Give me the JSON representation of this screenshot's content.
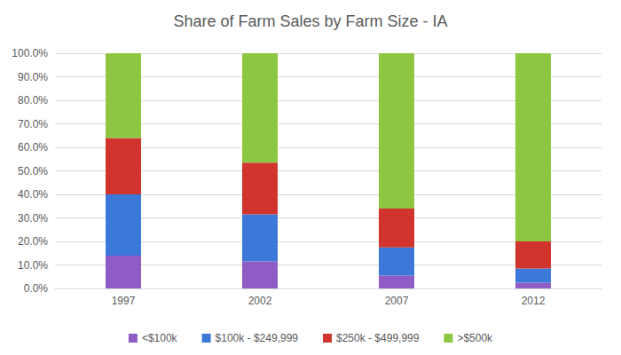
{
  "chart_data": {
    "type": "bar",
    "title": "Share of Farm Sales by Farm Size - IA",
    "categories": [
      "1997",
      "2002",
      "2007",
      "2012"
    ],
    "series": [
      {
        "name": "<$100k",
        "color": "#8f5bc5",
        "values": [
          14,
          11.5,
          5.5,
          2.5
        ]
      },
      {
        "name": "$100k - $249,999",
        "color": "#3c78d8",
        "values": [
          26,
          20,
          12,
          6
        ]
      },
      {
        "name": "$250k - $499,999",
        "color": "#d0342c",
        "values": [
          24,
          22,
          16.5,
          11.5
        ]
      },
      {
        "name": ">$500k",
        "color": "#8dc641",
        "values": [
          36,
          46.5,
          66,
          80
        ]
      }
    ],
    "stacked": true,
    "ylim": [
      0,
      100
    ],
    "yticks": [
      {
        "value": 0,
        "label": "0.0%"
      },
      {
        "value": 10,
        "label": "10.0%"
      },
      {
        "value": 20,
        "label": "20.0%"
      },
      {
        "value": 30,
        "label": "30.0%"
      },
      {
        "value": 40,
        "label": "40.0%"
      },
      {
        "value": 50,
        "label": "50.0%"
      },
      {
        "value": 60,
        "label": "60.0%"
      },
      {
        "value": 70,
        "label": "70.0%"
      },
      {
        "value": 80,
        "label": "80.0%"
      },
      {
        "value": 90,
        "label": "90.0%"
      },
      {
        "value": 100,
        "label": "100.0%"
      }
    ],
    "grid": true,
    "legend": "bottom"
  }
}
